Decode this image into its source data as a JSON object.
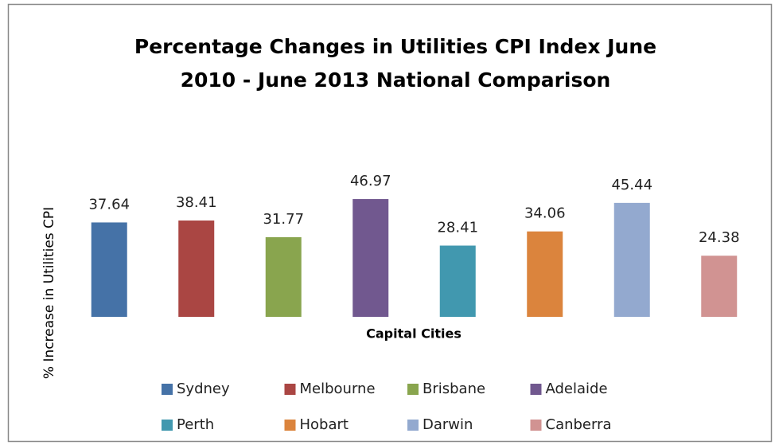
{
  "chart_data": {
    "type": "bar",
    "title": [
      "Percentage Changes in Utilities CPI Index June",
      "2010 - June 2013 National Comparison"
    ],
    "x_label": "Capital Cities",
    "y_label": "% Increase in Utilities CPI",
    "ylim": [
      0,
      50
    ],
    "series": [
      {
        "name": "Sydney",
        "color": "#4572A7",
        "values": [
          37.64
        ]
      },
      {
        "name": "Melbourne",
        "color": "#AA4643",
        "values": [
          38.41
        ]
      },
      {
        "name": "Brisbane",
        "color": "#89A54E",
        "values": [
          31.77
        ]
      },
      {
        "name": "Adelaide",
        "color": "#71588F",
        "values": [
          46.97
        ]
      },
      {
        "name": "Perth",
        "color": "#4198AF",
        "values": [
          28.41
        ]
      },
      {
        "name": "Hobart",
        "color": "#DB843D",
        "values": [
          34.06
        ]
      },
      {
        "name": "Darwin",
        "color": "#93A9CF",
        "values": [
          45.44
        ]
      },
      {
        "name": "Canberra",
        "color": "#D19392",
        "values": [
          24.38
        ]
      }
    ]
  }
}
